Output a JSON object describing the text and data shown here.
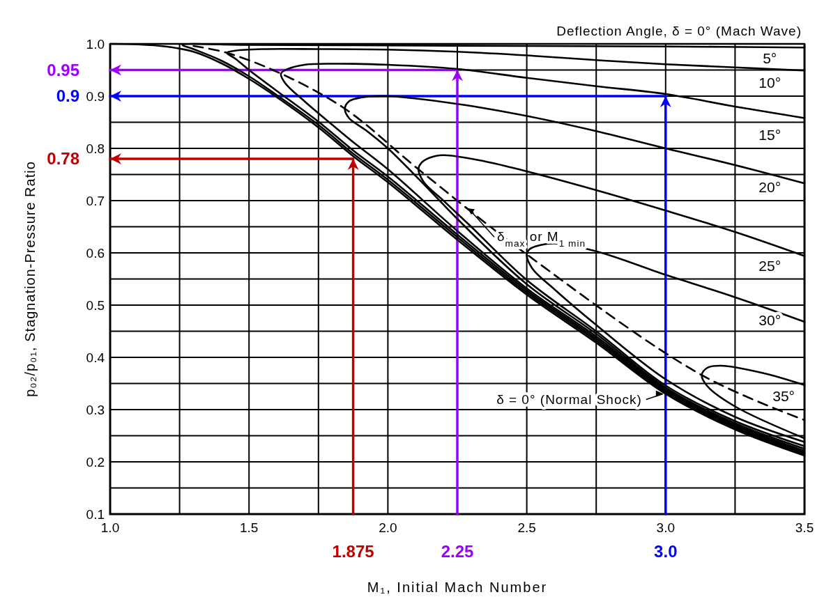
{
  "chart_data": {
    "type": "line",
    "xlabel": "M₁, Initial Mach Number",
    "ylabel": "p₀₂/p₀₁, Stagnation-Pressure Ratio",
    "xlim": [
      1.0,
      3.5
    ],
    "ylim": [
      0.1,
      1.0
    ],
    "xticks": [
      {
        "value": 1.0,
        "label": "1.0"
      },
      {
        "value": 1.25,
        "label": null
      },
      {
        "value": 1.5,
        "label": "1.5"
      },
      {
        "value": 1.75,
        "label": null
      },
      {
        "value": 2.0,
        "label": "2.0"
      },
      {
        "value": 2.25,
        "label": null
      },
      {
        "value": 2.5,
        "label": "2.5"
      },
      {
        "value": 2.75,
        "label": null
      },
      {
        "value": 3.0,
        "label": "3.0"
      },
      {
        "value": 3.25,
        "label": null
      },
      {
        "value": 3.5,
        "label": "3.5"
      }
    ],
    "yticks": [
      {
        "value": 0.1,
        "label": "0.1"
      },
      {
        "value": 0.15,
        "label": null
      },
      {
        "value": 0.2,
        "label": "0.2"
      },
      {
        "value": 0.25,
        "label": null
      },
      {
        "value": 0.3,
        "label": "0.3"
      },
      {
        "value": 0.35,
        "label": null
      },
      {
        "value": 0.4,
        "label": "0.4"
      },
      {
        "value": 0.45,
        "label": null
      },
      {
        "value": 0.5,
        "label": "0.5"
      },
      {
        "value": 0.55,
        "label": null
      },
      {
        "value": 0.6,
        "label": "0.6"
      },
      {
        "value": 0.65,
        "label": null
      },
      {
        "value": 0.7,
        "label": "0.7"
      },
      {
        "value": 0.75,
        "label": null
      },
      {
        "value": 0.8,
        "label": "0.8"
      },
      {
        "value": 0.85,
        "label": null
      },
      {
        "value": 0.9,
        "label": "0.9"
      },
      {
        "value": 0.95,
        "label": null
      },
      {
        "value": 1.0,
        "label": "1.0"
      }
    ],
    "grid": true,
    "series": [
      {
        "name": "Deflection Angle, δ = 0° (Mach Wave)",
        "color": "#000000",
        "x": [
          1.0,
          3.5
        ],
        "values": [
          1.0,
          1.0
        ]
      },
      {
        "name": "δ = 0° (Normal Shock)",
        "color": "#000000",
        "x": [
          1.0,
          1.1,
          1.2,
          1.3,
          1.4,
          1.5,
          1.6,
          1.75,
          1.875,
          2.0,
          2.25,
          2.5,
          2.75,
          3.0,
          3.25,
          3.5
        ],
        "values": [
          1.0,
          0.999,
          0.995,
          0.985,
          0.963,
          0.933,
          0.898,
          0.84,
          0.785,
          0.735,
          0.625,
          0.52,
          0.428,
          0.33,
          0.262,
          0.212
        ]
      },
      {
        "name": "δ$_{max}$ or M$_{1 min}$",
        "color": "#000000",
        "line_style": "dashed",
        "x": [
          1.3,
          1.42,
          1.615,
          1.845,
          2.11,
          2.5,
          3.13,
          3.5
        ],
        "values": [
          0.996,
          0.983,
          0.943,
          0.876,
          0.76,
          0.597,
          0.366,
          0.28
        ]
      },
      {
        "name": "5°",
        "color": "#000000",
        "x": [
          3.5,
          3.0,
          2.5,
          2.0,
          1.5,
          1.26,
          1.3,
          1.4,
          1.5,
          1.6,
          1.75,
          1.875,
          2.0,
          2.25,
          2.5,
          2.75,
          3.0,
          3.25,
          3.5
        ],
        "values": [
          0.993,
          0.995,
          0.996,
          0.997,
          0.998,
          0.998,
          0.99,
          0.968,
          0.938,
          0.902,
          0.845,
          0.79,
          0.74,
          0.63,
          0.524,
          0.432,
          0.333,
          0.265,
          0.215
        ]
      },
      {
        "name": "10°",
        "color": "#000000",
        "x": [
          3.5,
          3.25,
          3.0,
          2.75,
          2.5,
          2.25,
          2.0,
          1.75,
          1.55,
          1.45,
          1.42,
          1.45,
          1.5,
          1.6,
          1.75,
          1.875,
          2.0,
          2.25,
          2.5,
          2.75,
          3.0,
          3.25,
          3.5
        ],
        "values": [
          0.949,
          0.955,
          0.961,
          0.969,
          0.978,
          0.985,
          0.989,
          0.99,
          0.99,
          0.987,
          0.983,
          0.972,
          0.95,
          0.91,
          0.851,
          0.796,
          0.746,
          0.635,
          0.528,
          0.436,
          0.336,
          0.268,
          0.218
        ]
      },
      {
        "name": "15°",
        "color": "#000000",
        "x": [
          3.5,
          3.25,
          3.0,
          2.75,
          2.5,
          2.25,
          2.0,
          1.8,
          1.7,
          1.64,
          1.615,
          1.63,
          1.7,
          1.8,
          1.875,
          2.0,
          2.25,
          2.5,
          2.75,
          3.0,
          3.25,
          3.5
        ],
        "values": [
          0.858,
          0.88,
          0.904,
          0.919,
          0.935,
          0.952,
          0.96,
          0.962,
          0.96,
          0.952,
          0.943,
          0.925,
          0.89,
          0.845,
          0.812,
          0.76,
          0.642,
          0.532,
          0.44,
          0.339,
          0.271,
          0.221
        ]
      },
      {
        "name": "20°",
        "color": "#000000",
        "x": [
          3.5,
          3.25,
          3.0,
          2.75,
          2.5,
          2.25,
          2.0,
          1.9,
          1.86,
          1.845,
          1.86,
          1.92,
          2.0,
          2.15,
          2.25,
          2.5,
          2.75,
          3.0,
          3.25,
          3.5
        ],
        "values": [
          0.733,
          0.768,
          0.8,
          0.833,
          0.862,
          0.885,
          0.9,
          0.897,
          0.89,
          0.876,
          0.858,
          0.835,
          0.8,
          0.72,
          0.665,
          0.54,
          0.445,
          0.342,
          0.274,
          0.225
        ]
      },
      {
        "name": "25°",
        "color": "#000000",
        "x": [
          3.5,
          3.25,
          3.0,
          2.75,
          2.5,
          2.35,
          2.2,
          2.15,
          2.12,
          2.11,
          2.13,
          2.2,
          2.25,
          2.3,
          2.5,
          2.75,
          3.0,
          3.25,
          3.5
        ],
        "values": [
          0.594,
          0.64,
          0.681,
          0.72,
          0.756,
          0.775,
          0.787,
          0.782,
          0.772,
          0.76,
          0.735,
          0.7,
          0.675,
          0.65,
          0.548,
          0.45,
          0.346,
          0.278,
          0.23
        ]
      },
      {
        "name": "30°",
        "color": "#000000",
        "x": [
          3.5,
          3.25,
          3.0,
          2.75,
          2.6,
          2.55,
          2.51,
          2.5,
          2.52,
          2.6,
          2.75,
          3.0,
          3.25,
          3.5
        ],
        "values": [
          0.468,
          0.515,
          0.558,
          0.603,
          0.618,
          0.615,
          0.607,
          0.597,
          0.57,
          0.53,
          0.462,
          0.358,
          0.286,
          0.238
        ]
      },
      {
        "name": "35°",
        "color": "#000000",
        "x": [
          3.5,
          3.35,
          3.2,
          3.15,
          3.13,
          3.15,
          3.25,
          3.5
        ],
        "values": [
          0.347,
          0.37,
          0.384,
          0.38,
          0.366,
          0.345,
          0.306,
          0.245
        ]
      },
      {
        "color": "#c00000",
        "x": [
          1.875,
          1.875,
          1.0
        ],
        "values": [
          0.1,
          0.78,
          0.78
        ]
      },
      {
        "color": "#9b00ff",
        "x": [
          2.25,
          2.25,
          1.0
        ],
        "values": [
          0.1,
          0.95,
          0.95
        ]
      },
      {
        "color": "#0000ff",
        "x": [
          3.0,
          3.0,
          1.0
        ],
        "values": [
          0.1,
          0.9,
          0.9
        ]
      }
    ],
    "annotations": [
      {
        "text": "1.875",
        "x": 1.875,
        "y": 0.1
      },
      {
        "text": "0.78",
        "x": 1.0,
        "y": 0.78
      },
      {
        "text": "2.25",
        "x": 2.25,
        "y": 0.1
      },
      {
        "text": "0.95",
        "x": 1.0,
        "y": 0.95
      },
      {
        "text": "3.0",
        "x": 3.0,
        "y": 0.1
      },
      {
        "text": "0.9",
        "x": 1.0,
        "y": 0.9
      }
    ]
  }
}
